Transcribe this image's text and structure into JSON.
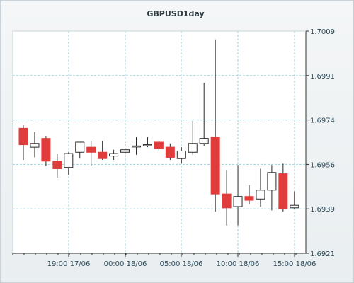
{
  "chart_data": {
    "type": "candlestick",
    "title": "GBPUSD1day",
    "grid": true,
    "ylim": [
      1.6921,
      1.7009
    ],
    "y_ticks": [
      "1.7009",
      "1.6991",
      "1.6974",
      "1.6956",
      "1.6939",
      "1.6921"
    ],
    "x_ticks": [
      "19:00 17/06",
      "00:00 18/06",
      "05:00 18/06",
      "10:00 18/06",
      "15:00 18/06"
    ],
    "colors": {
      "up_body": "#ffffff",
      "down_body": "#e03c3c",
      "outline": "#2a2a2a",
      "grid": "#9fd3d9",
      "axis": "#333333"
    },
    "candles": [
      {
        "o": 1.69705,
        "h": 1.69717,
        "l": 1.6958,
        "c": 1.6964
      },
      {
        "o": 1.6963,
        "h": 1.6969,
        "l": 1.6959,
        "c": 1.69645
      },
      {
        "o": 1.69665,
        "h": 1.69675,
        "l": 1.69555,
        "c": 1.69575
      },
      {
        "o": 1.69575,
        "h": 1.69605,
        "l": 1.6951,
        "c": 1.69545
      },
      {
        "o": 1.6955,
        "h": 1.6961,
        "l": 1.6952,
        "c": 1.69605
      },
      {
        "o": 1.6961,
        "h": 1.6965,
        "l": 1.69585,
        "c": 1.6965
      },
      {
        "o": 1.6963,
        "h": 1.69655,
        "l": 1.69555,
        "c": 1.6961
      },
      {
        "o": 1.6961,
        "h": 1.69655,
        "l": 1.6958,
        "c": 1.69585
      },
      {
        "o": 1.69595,
        "h": 1.6962,
        "l": 1.6958,
        "c": 1.69605
      },
      {
        "o": 1.6961,
        "h": 1.6965,
        "l": 1.6959,
        "c": 1.6962
      },
      {
        "o": 1.69635,
        "h": 1.6967,
        "l": 1.696,
        "c": 1.69635
      },
      {
        "o": 1.6964,
        "h": 1.6967,
        "l": 1.6963,
        "c": 1.6964
      },
      {
        "o": 1.6965,
        "h": 1.69655,
        "l": 1.69615,
        "c": 1.69625
      },
      {
        "o": 1.6963,
        "h": 1.69645,
        "l": 1.6958,
        "c": 1.6959
      },
      {
        "o": 1.69585,
        "h": 1.6963,
        "l": 1.69565,
        "c": 1.69615
      },
      {
        "o": 1.6961,
        "h": 1.69735,
        "l": 1.696,
        "c": 1.69645
      },
      {
        "o": 1.69645,
        "h": 1.69885,
        "l": 1.69635,
        "c": 1.69665
      },
      {
        "o": 1.6967,
        "h": 1.70057,
        "l": 1.69375,
        "c": 1.69445
      },
      {
        "o": 1.69445,
        "h": 1.6954,
        "l": 1.6932,
        "c": 1.6939
      },
      {
        "o": 1.69395,
        "h": 1.6956,
        "l": 1.6932,
        "c": 1.69435
      },
      {
        "o": 1.69435,
        "h": 1.6948,
        "l": 1.69405,
        "c": 1.6942
      },
      {
        "o": 1.69425,
        "h": 1.69545,
        "l": 1.69395,
        "c": 1.6946
      },
      {
        "o": 1.6946,
        "h": 1.6956,
        "l": 1.6938,
        "c": 1.6953
      },
      {
        "o": 1.69525,
        "h": 1.69565,
        "l": 1.69375,
        "c": 1.69385
      },
      {
        "o": 1.6939,
        "h": 1.69455,
        "l": 1.69385,
        "c": 1.694
      }
    ]
  }
}
